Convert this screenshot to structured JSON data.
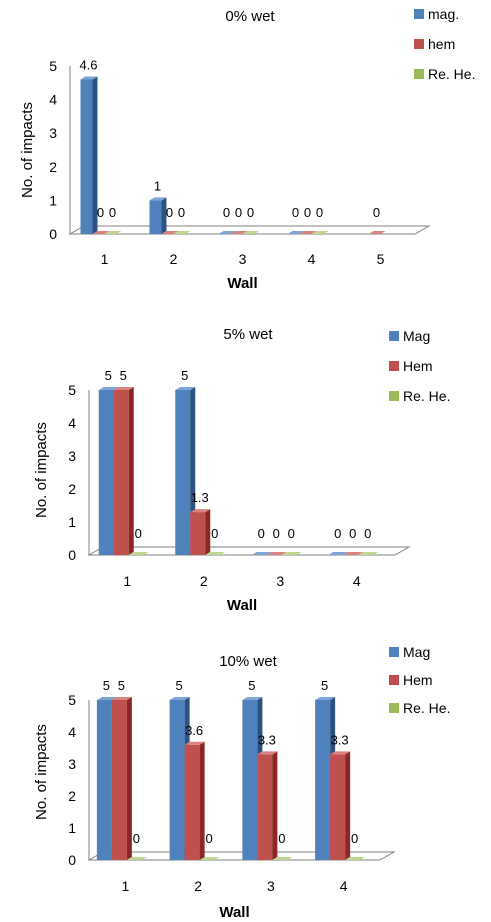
{
  "colors": {
    "mag_front": "#4F81BD",
    "mag_top": "#7EA4D6",
    "mag_side": "#2C5283",
    "hem_front": "#C0504D",
    "hem_top": "#DA8280",
    "hem_side": "#8A2826",
    "re_front": "#9BBB59",
    "re_top": "#C0D88E",
    "re_side": "#6B8A2F",
    "floor": "#ffffff",
    "axis": "#808080"
  },
  "chart_data": [
    {
      "type": "bar",
      "title": "0% wet",
      "xlabel": "Wall",
      "ylabel": "No. of impacts",
      "categories": [
        "1",
        "2",
        "3",
        "4",
        "5"
      ],
      "yticks": [
        "0",
        "1",
        "2",
        "3",
        "4",
        "5"
      ],
      "ylim": [
        0,
        5
      ],
      "legend_position": "right",
      "series": [
        {
          "name": "mag.",
          "values": [
            4.6,
            1,
            0,
            0,
            null
          ],
          "labels": [
            "4.6",
            "1",
            "0",
            "0",
            ""
          ]
        },
        {
          "name": "hem",
          "values": [
            0,
            0,
            0,
            0,
            0
          ],
          "labels": [
            "0",
            "0",
            "0",
            "0",
            "0"
          ]
        },
        {
          "name": "Re. He.",
          "values": [
            0,
            0,
            0,
            0,
            null
          ],
          "labels": [
            "0",
            "0",
            "0",
            "0",
            ""
          ]
        }
      ]
    },
    {
      "type": "bar",
      "title": "5% wet",
      "xlabel": "Wall",
      "ylabel": "No. of impacts",
      "categories": [
        "1",
        "2",
        "3",
        "4"
      ],
      "yticks": [
        "0",
        "1",
        "2",
        "3",
        "4",
        "5"
      ],
      "ylim": [
        0,
        5
      ],
      "legend_position": "right",
      "series": [
        {
          "name": "Mag",
          "values": [
            5,
            5,
            0,
            0
          ],
          "labels": [
            "5",
            "5",
            "0",
            "0"
          ]
        },
        {
          "name": "Hem",
          "values": [
            5,
            1.3,
            0,
            0
          ],
          "labels": [
            "5",
            "1.3",
            "0",
            "0"
          ]
        },
        {
          "name": "Re. He.",
          "values": [
            0,
            0,
            0,
            0
          ],
          "labels": [
            "0",
            "0",
            "0",
            "0"
          ]
        }
      ]
    },
    {
      "type": "bar",
      "title": "10% wet",
      "xlabel": "Wall",
      "ylabel": "No. of impacts",
      "categories": [
        "1",
        "2",
        "3",
        "4"
      ],
      "yticks": [
        "0",
        "1",
        "2",
        "3",
        "4",
        "5"
      ],
      "ylim": [
        0,
        5
      ],
      "legend_position": "right",
      "series": [
        {
          "name": "Mag",
          "values": [
            5,
            5,
            5,
            5
          ],
          "labels": [
            "5",
            "5",
            "5",
            "5"
          ]
        },
        {
          "name": "Hem",
          "values": [
            5,
            3.6,
            3.3,
            3.3
          ],
          "labels": [
            "5",
            "3.6",
            "3.3",
            "3.3"
          ]
        },
        {
          "name": "Re. He.",
          "values": [
            0,
            0,
            0,
            0
          ],
          "labels": [
            "0",
            "0",
            "0",
            "0"
          ]
        }
      ]
    }
  ]
}
